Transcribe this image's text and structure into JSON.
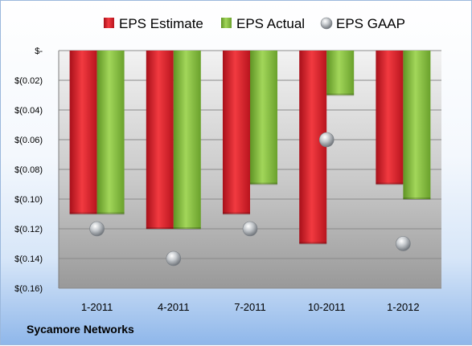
{
  "company": "Sycamore Networks",
  "chart_data": {
    "type": "bar",
    "categories": [
      "1-2011",
      "4-2011",
      "7-2011",
      "10-2011",
      "1-2012"
    ],
    "series": [
      {
        "name": "EPS Estimate",
        "kind": "bar",
        "color": "#e0202a",
        "values": [
          -0.11,
          -0.12,
          -0.11,
          -0.13,
          -0.09
        ]
      },
      {
        "name": "EPS Actual",
        "kind": "bar",
        "color": "#8cc63f",
        "values": [
          -0.11,
          -0.12,
          -0.09,
          -0.03,
          -0.1
        ]
      },
      {
        "name": "EPS GAAP",
        "kind": "marker",
        "color": "#b8bcc0",
        "values": [
          -0.12,
          -0.14,
          -0.12,
          -0.06,
          -0.13
        ]
      }
    ],
    "ylim": [
      -0.16,
      0
    ],
    "y_ticks": [
      {
        "value": 0,
        "label": "$-"
      },
      {
        "value": -0.02,
        "label": "$(0.02)"
      },
      {
        "value": -0.04,
        "label": "$(0.04)"
      },
      {
        "value": -0.06,
        "label": "$(0.06)"
      },
      {
        "value": -0.08,
        "label": "$(0.08)"
      },
      {
        "value": -0.1,
        "label": "$(0.10)"
      },
      {
        "value": -0.12,
        "label": "$(0.12)"
      },
      {
        "value": -0.14,
        "label": "$(0.14)"
      },
      {
        "value": -0.16,
        "label": "$(0.16)"
      }
    ],
    "grid": true,
    "legend_position": "top"
  }
}
